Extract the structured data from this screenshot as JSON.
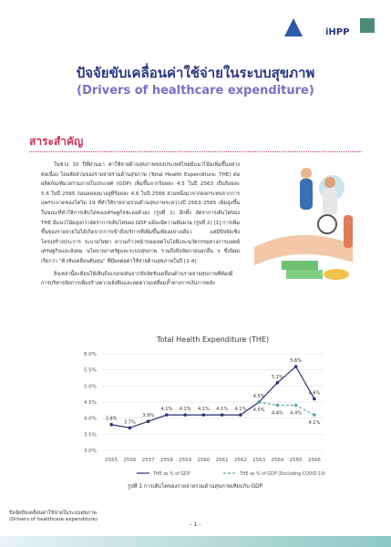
{
  "header": {
    "logo_text": "iHPP"
  },
  "title": "ปัจจัยขับเคลื่อนค่าใช้จ่ายในระบบสุขภาพ",
  "subtitle": "(Drivers of healthcare expenditure)",
  "section": {
    "heading": "สาระสำคัญ",
    "paragraphs": [
      "ในช่วง 10 ปีที่ผ่านมา ค่าใช้จ่ายด้านสุขภาพของประเทศไทยมีแนวโน้มเพิ่มขึ้นอย่างต่อเนื่อง โดยสัดส่วนของรายจ่ายรวมด้านสุขภาพ (Total Health Expenditure: THE) ต่อผลิตภัณฑ์มวลรวมภายในประเทศ (GDP) เพิ่มขึ้นจากร้อยละ 4.5 ในปี 2563 เป็นร้อยละ 5.6 ในปี 2565 ก่อนลดลงมาอยู่ที่ร้อยละ 4.6 ในปี 2566 ส่วนหนึ่งมาจากผลกระทบจากการแพร่ระบาดของโควิด 19 ที่ทำให้รายจ่ายรวมด้านสุขภาพระหว่างปี 2563–2565 เพิ่มสูงขึ้นในขณะที่ทำให้การเติบโตของเศรษฐกิจชะลอตัวลง (รูปที่ 1) อีกทั้ง อัตราการเติบโตของ THE มีแนวโน้มสูงกว่าอัตราการเติบโตของ GDP แม้จะมีความผันผวน (รูปที่ 2) [1] การเพิ่มขึ้นของรายจ่ายไม่ได้เกิดจากการเข้าถึงบริการที่เพิ่มขึ้นเพียงอย่างเดียว แต่มีปัจจัยเชิงโครงสร้างประการ ระบาดวิทยา ความก้าวหน้าของเทคโนโลยีและนวัตกรรมทางการแพทย์ เศรษฐกิจและสังคม นโยบายภาครัฐและระบบสุขภาพ รวมถึงปัจจัยภายนอกอื่น ๆ ซึ่งนิยมเรียกว่า “ตัวขับเคลื่อนต้นทุน” ที่มีผลต่อค่าใช้จ่ายด้านสุขภาพในปี [2-4]",
      "สิ่งเหล่านี้สะท้อนให้เห็นถึงแรงกดดันจากปัจจัยขับเคลื่อนด้านรายจ่ายสุขภาพที่ต้องมีการบริหารจัดการเพื่อสร้างความยั่งยืนและลดความเหลื่อมล้ำทางการเงินการคลัง"
    ]
  },
  "chart_data": {
    "type": "line",
    "title": "Total Health Expenditure (THE)",
    "categories": [
      "2555",
      "2556",
      "2557",
      "2558",
      "2559",
      "2560",
      "2561",
      "2562",
      "2563",
      "2564",
      "2565",
      "2566"
    ],
    "series": [
      {
        "name": "THE as % of GDP",
        "color": "#2a3170",
        "values": [
          3.8,
          3.7,
          3.9,
          4.1,
          4.1,
          4.1,
          4.1,
          4.1,
          4.5,
          5.1,
          5.6,
          4.6
        ],
        "value_labels": [
          "3.8%",
          "3.7%",
          "3.9%",
          "4.1%",
          "4.1%",
          "4.1%",
          "4.1%",
          "4.1%",
          "4.5%",
          "5.1%",
          "5.6%",
          "4.6%"
        ]
      },
      {
        "name": "THE as % of GDP (Excluding COVID-19)",
        "color": "#5aa7a7",
        "dashed": true,
        "values": [
          null,
          null,
          null,
          null,
          null,
          null,
          null,
          null,
          4.5,
          4.4,
          4.4,
          4.1
        ],
        "value_labels": [
          null,
          null,
          null,
          null,
          null,
          null,
          null,
          null,
          "4.5%",
          "4.4%",
          "4.4%",
          "4.1%"
        ]
      }
    ],
    "ylim": [
      3.0,
      6.0
    ],
    "yticks": [
      {
        "value": 3.0,
        "label": "3.0%"
      },
      {
        "value": 3.5,
        "label": "3.5%"
      },
      {
        "value": 4.0,
        "label": "4.0%"
      },
      {
        "value": 4.5,
        "label": "4.5%"
      },
      {
        "value": 5.0,
        "label": "5.0%"
      },
      {
        "value": 5.5,
        "label": "5.5%"
      },
      {
        "value": 6.0,
        "label": "6.0%"
      }
    ],
    "grid": true,
    "caption": "รูปที่ 1 การเติบโตของรายจ่ายรวมด้านสุขภาพเทียบกับ GDP"
  },
  "footer": {
    "title": "ปัจจัยขับเคลื่อนค่าใช้จ่ายในระบบสุขภาพ",
    "subtitle": "(Drivers of healthcare expenditure)",
    "page": "- 1 -"
  }
}
